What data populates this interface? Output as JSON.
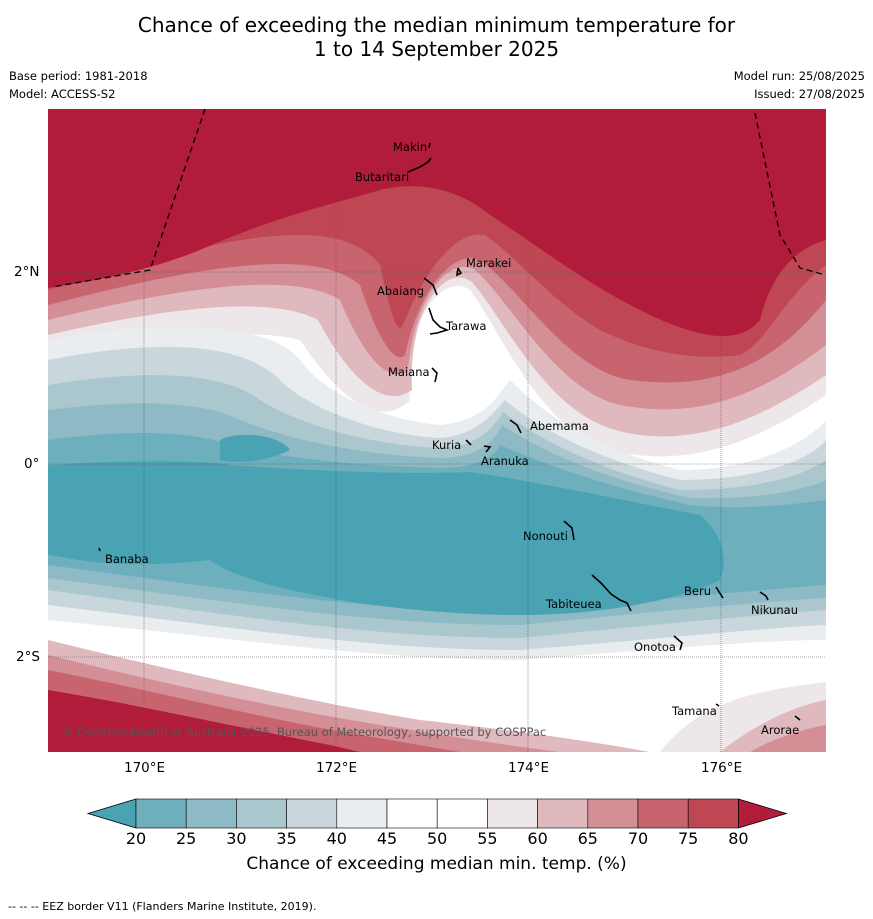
{
  "header": {
    "title_line1": "Chance of exceeding the median minimum temperature for",
    "title_line2": "1 to 14 September 2025",
    "base_period": "Base period: 1981-2018",
    "model": "Model: ACCESS-S2",
    "model_run": "Model run: 25/08/2025",
    "issued": "Issued: 27/08/2025"
  },
  "map": {
    "lon_labels": [
      "170°E",
      "172°E",
      "174°E",
      "176°E"
    ],
    "lat_labels": [
      "2°N",
      "0°",
      "2°S"
    ],
    "copyright": "© Commonwealth of Australia 2025, Bureau of Meteorology, supported by COSPPac",
    "islands": [
      "Makin",
      "Butaritari",
      "Marakei",
      "Abaiang",
      "Tarawa",
      "Maiana",
      "Abemama",
      "Kuria",
      "Aranuka",
      "Banaba",
      "Nonouti",
      "Beru",
      "Tabiteuea",
      "Nikunau",
      "Onotoa",
      "Tamana",
      "Arorae"
    ]
  },
  "colorbar": {
    "ticks": [
      "20",
      "25",
      "30",
      "35",
      "40",
      "45",
      "50",
      "55",
      "60",
      "65",
      "70",
      "75",
      "80"
    ],
    "colors": [
      "#4aa3b3",
      "#6eafbd",
      "#8ebac5",
      "#aac7cd",
      "#c9d7dc",
      "#e9edf0",
      "#ffffff",
      "#ffffff",
      "#ede7ea",
      "#e0b9bf",
      "#d48e96",
      "#c8646e",
      "#bf4753",
      "#b01c39"
    ],
    "label": "Chance of exceeding median min. temp. (%)"
  },
  "footnote": "--  --  -- EEZ border V11 (Flanders Marine Institute, 2019)."
}
